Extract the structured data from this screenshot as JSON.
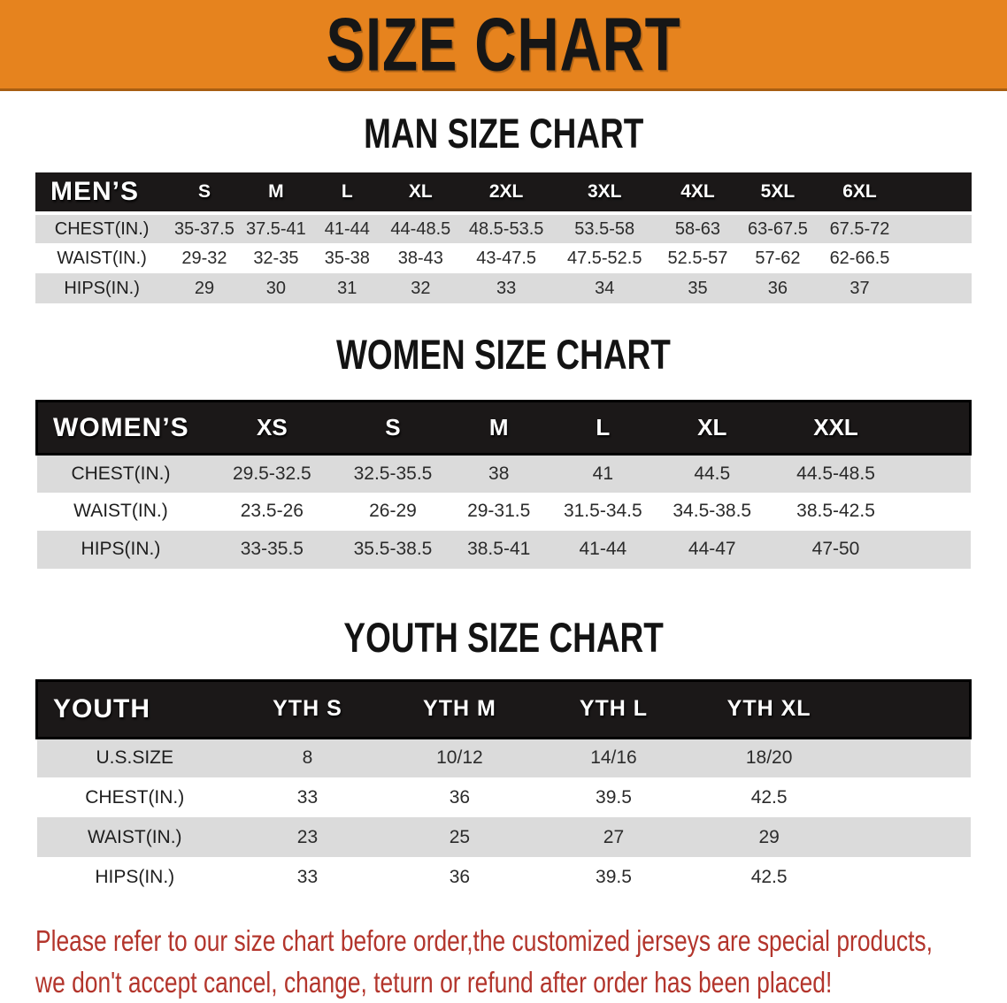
{
  "banner": {
    "title": "SIZE CHART"
  },
  "sections": [
    {
      "heading": "MAN SIZE CHART",
      "table": {
        "label": "MEN’S",
        "columns": [
          "S",
          "M",
          "L",
          "XL",
          "2XL",
          "3XL",
          "4XL",
          "5XL",
          "6XL"
        ],
        "rows": [
          {
            "label": "CHEST(IN.)",
            "values": [
              "35-37.5",
              "37.5-41",
              "41-44",
              "44-48.5",
              "48.5-53.5",
              "53.5-58",
              "58-63",
              "63-67.5",
              "67.5-72"
            ]
          },
          {
            "label": "WAIST(IN.)",
            "values": [
              "29-32",
              "32-35",
              "35-38",
              "38-43",
              "43-47.5",
              "47.5-52.5",
              "52.5-57",
              "57-62",
              "62-66.5"
            ]
          },
          {
            "label": "HIPS(IN.)",
            "values": [
              "29",
              "30",
              "31",
              "32",
              "33",
              "34",
              "35",
              "36",
              "37"
            ]
          }
        ]
      }
    },
    {
      "heading": "WOMEN SIZE CHART",
      "table": {
        "label": "WOMEN’S",
        "columns": [
          "XS",
          "S",
          "M",
          "L",
          "XL",
          "XXL"
        ],
        "rows": [
          {
            "label": "CHEST(IN.)",
            "values": [
              "29.5-32.5",
              "32.5-35.5",
              "38",
              "41",
              "44.5",
              "44.5-48.5"
            ]
          },
          {
            "label": "WAIST(IN.)",
            "values": [
              "23.5-26",
              "26-29",
              "29-31.5",
              "31.5-34.5",
              "34.5-38.5",
              "38.5-42.5"
            ]
          },
          {
            "label": "HIPS(IN.)",
            "values": [
              "33-35.5",
              "35.5-38.5",
              "38.5-41",
              "41-44",
              "44-47",
              "47-50"
            ]
          }
        ]
      }
    },
    {
      "heading": "YOUTH SIZE CHART",
      "table": {
        "label": "YOUTH",
        "columns": [
          "YTH S",
          "YTH M",
          "YTH L",
          "YTH XL"
        ],
        "rows": [
          {
            "label": "U.S.SIZE",
            "values": [
              "8",
              "10/12",
              "14/16",
              "18/20"
            ]
          },
          {
            "label": "CHEST(IN.)",
            "values": [
              "33",
              "36",
              "39.5",
              "42.5"
            ]
          },
          {
            "label": "WAIST(IN.)",
            "values": [
              "23",
              "25",
              "27",
              "29"
            ]
          },
          {
            "label": "HIPS(IN.)",
            "values": [
              "33",
              "36",
              "39.5",
              "42.5"
            ]
          }
        ]
      }
    }
  ],
  "disclaimer": {
    "line1": "Please refer to our size chart before order,the customized jerseys are special products,",
    "line2": "we don't accept cancel, change, teturn or refund after order has been placed!"
  },
  "colors": {
    "banner-bg": "#E6831E",
    "banner-border": "#A85E12",
    "header-bar": "#1B1818",
    "stripe": "#DBDBDB",
    "disclaimer-red": "#B3352C"
  }
}
